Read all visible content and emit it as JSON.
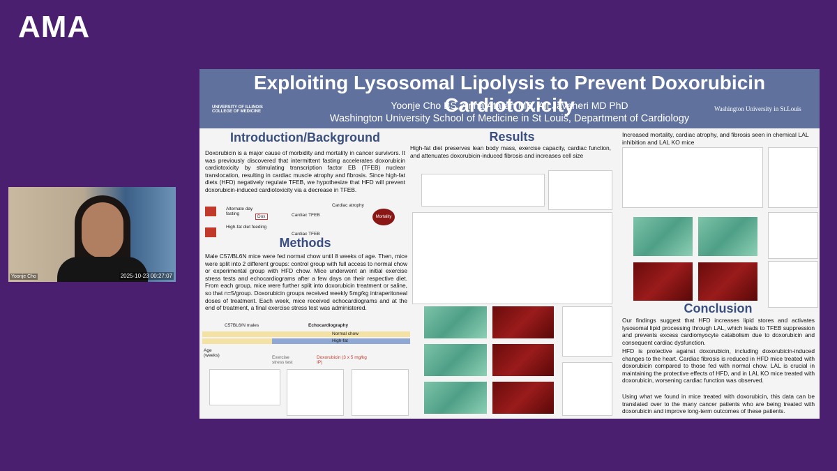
{
  "logo": "AMA",
  "webcam": {
    "name": "Yoonje Cho",
    "timestamp": "2025-10-23 00:27:07"
  },
  "poster": {
    "title": "Exploiting Lysosomal Lipolysis to Prevent Doxorubicin Cardiotoxicity",
    "authors": "Yoonje Cho BS, Anna Ataran MD, Ali Javaheri MD PhD",
    "affiliation": "Washington University School of Medicine in St Louis, Department of Cardiology",
    "logo_left": "UNIVERSITY OF ILLINOIS COLLEGE OF MEDICINE",
    "logo_right": "Washington University in St.Louis",
    "intro": {
      "heading": "Introduction/Background",
      "text": "Doxorubicin is a major cause of morbidity and mortality in cancer survivors. It was previously discovered that intermittent fasting accelerates doxorubicin cardiotoxicity by stimulating transcription factor EB (TFEB) nuclear translocation, resulting in cardiac muscle atrophy and fibrosis. Since high-fat diets (HFD) negatively regulate TFEB, we hypothesize that HFD will prevent doxorubicin-induced cardiotoxicity via a decrease in TFEB.",
      "diagram": {
        "fasting": "Alternate day fasting",
        "hfd": "High-fat diet feeding",
        "tfeb": "Cardiac TFEB",
        "atrophy": "Cardiac atrophy",
        "mortality": "Mortality",
        "dox": "Dox"
      }
    },
    "methods": {
      "heading": "Methods",
      "text": "Male C57/BL6N mice were fed normal chow until 8 weeks of age. Then, mice were split into 2 different groups: control group with full access to normal chow or experimental group with HFD chow. Mice underwent an initial exercise stress tests and echocardiograms after a few days on their respective diet. From each group, mice were further split into doxorubicin treatment or saline, so that n=5/group. Doxorubicin groups received weekly 5mg/kg intraperitoneal doses of treatment. Each week, mice received echocardiograms and at the end of treatment, a final exercise stress test was administered.",
      "timeline": {
        "mice": "C57BL6/N males",
        "echo": "Echocardiography",
        "chow": "Normal chow",
        "highfat": "High-fat",
        "age": "Age (weeks)",
        "dox": "Doxorubicin (3 x 5 mg/kg IP)",
        "stress": "Exercise stress test"
      }
    },
    "results": {
      "heading": "Results",
      "text": "High-fat diet preserves lean body mass, exercise capacity, cardiac function, and attenuates doxorubicin-induced fibrosis and increases cell size"
    },
    "right_caption": "Increased mortality, cardiac atrophy, and fibrosis seen in chemical LAL inhibition and LAL KO mice",
    "conclusion": {
      "heading": "Conclusion",
      "paragraphs": [
        "Our findings suggest that HFD increases lipid stores and activates lysosomal lipid processing through LAL, which leads to TFEB suppression and prevents excess cardiomyocyte catabolism due to doxorubicin and consequent cardiac dysfunction.",
        "HFD is protective against doxorubicin, including doxorubicin-induced changes to the heart. Cardiac fibrosis is reduced in HFD mice treated with doxorubicin compared to those fed with normal chow. LAL is crucial in maintaining the protective effects of HFD, and in LAL KO mice treated with doxorubicin, worsening cardiac function was observed.",
        "Using what we found in mice treated with doxorubicin, this data can be translated over to the many cancer patients who are being treated with doxorubicin and improve long-term outcomes of these patients."
      ]
    }
  }
}
